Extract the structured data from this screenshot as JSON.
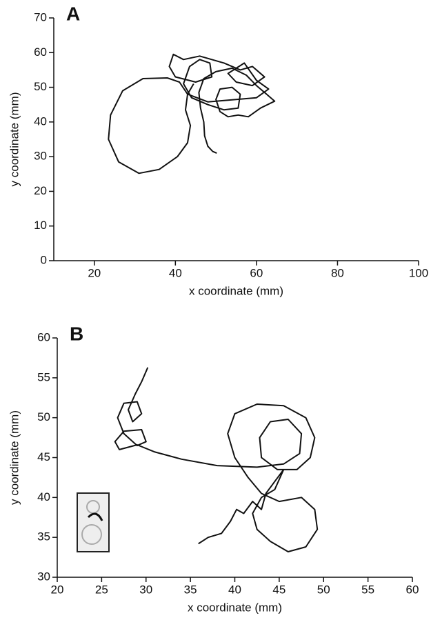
{
  "chart_data": [
    {
      "type": "line",
      "panel_label": "A",
      "xlabel": "x coordinate (mm)",
      "ylabel": "y coordinate (mm)",
      "color": "#111111",
      "xlim": [
        10,
        100
      ],
      "xticks": [
        20,
        40,
        60,
        80,
        100
      ],
      "ylim": [
        0,
        70
      ],
      "yticks": [
        0,
        10,
        20,
        30,
        40,
        50,
        60,
        70
      ],
      "x": [
        50.2,
        49.2,
        48,
        47.2,
        47,
        46.2,
        45.8,
        47,
        50,
        54,
        57.5,
        60,
        62.5,
        64.5,
        61,
        58,
        55.5,
        53,
        51,
        50,
        51,
        54,
        56,
        55.5,
        52,
        48,
        44,
        42,
        43.5,
        46,
        48.5,
        49,
        45,
        40,
        38.5,
        39.5,
        42,
        46,
        52,
        56,
        59,
        62,
        59,
        55,
        53,
        57,
        60,
        63,
        60,
        55,
        48,
        43,
        41,
        38,
        32,
        27,
        24,
        23.5,
        26,
        31,
        36,
        40.5,
        43,
        43.7,
        42.5,
        43,
        44.5
      ],
      "values": [
        31,
        31.5,
        33,
        36,
        40,
        44,
        48.5,
        52.5,
        54.5,
        55.5,
        53.5,
        50.5,
        48,
        46,
        44,
        41.5,
        42,
        41.5,
        43,
        46.5,
        49.5,
        50,
        48,
        44,
        43.5,
        45,
        47,
        51,
        56,
        58,
        57,
        53,
        51.5,
        53,
        56,
        59.5,
        58,
        59,
        57,
        55,
        56,
        53,
        50.5,
        51.5,
        54,
        57,
        52,
        49.5,
        47,
        46.5,
        45.8,
        48,
        51.5,
        52.7,
        52.5,
        49,
        42,
        35,
        28.5,
        25.2,
        26.3,
        30,
        34,
        39,
        43.5,
        48,
        51
      ]
    },
    {
      "type": "line",
      "panel_label": "B",
      "xlabel": "x coordinate (mm)",
      "ylabel": "y coordinate (mm)",
      "color": "#111111",
      "xlim": [
        20,
        60
      ],
      "xticks": [
        20,
        25,
        30,
        35,
        40,
        45,
        50,
        55,
        60
      ],
      "ylim": [
        30,
        60
      ],
      "yticks": [
        30,
        35,
        40,
        45,
        50,
        55,
        60
      ],
      "x": [
        35.9,
        37,
        38.5,
        39.5,
        40.2,
        41,
        42,
        43,
        43.5,
        44.5,
        45.5,
        44.5,
        43,
        42,
        42.5,
        44,
        46,
        48,
        49.3,
        49,
        47.5,
        45,
        43,
        41.5,
        40,
        39.2,
        40,
        42.5,
        45.5,
        48,
        49,
        48.5,
        47,
        44.8,
        43,
        42.8,
        44,
        46,
        47.5,
        47.3,
        45.5,
        42.5,
        38,
        34,
        31,
        29,
        27,
        26.5,
        27.5,
        29.5,
        30,
        29,
        27.5,
        26.8,
        27.5,
        29,
        29.5,
        28.5,
        28,
        28.8,
        29.5,
        30.2
      ],
      "values": [
        34.2,
        35,
        35.5,
        37,
        38.5,
        38,
        39.5,
        38.5,
        40.5,
        42,
        43.5,
        41,
        40,
        38,
        36,
        34.5,
        33.2,
        33.8,
        36,
        38.5,
        40,
        39.5,
        40.5,
        42.5,
        45,
        48,
        50.5,
        51.7,
        51.5,
        50,
        47.5,
        45,
        43.5,
        43.5,
        45,
        47.5,
        49.5,
        49.8,
        48,
        45.5,
        44.2,
        43.8,
        44,
        44.8,
        45.7,
        46.6,
        46,
        47,
        48.3,
        48.5,
        47,
        46.5,
        48,
        50,
        51.8,
        52,
        50.5,
        49.5,
        51,
        53,
        54.5,
        56.3
      ]
    }
  ]
}
